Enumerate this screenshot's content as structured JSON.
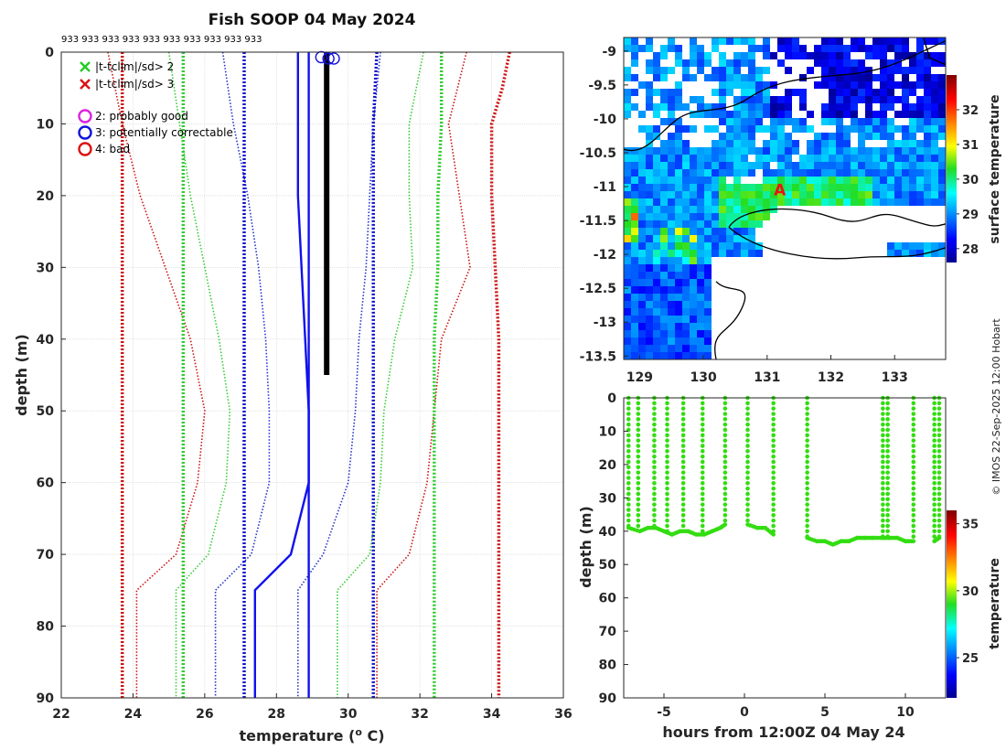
{
  "chart_data": [
    {
      "type": "line",
      "name": "profile",
      "title": "Fish SOOP 04 May 2024",
      "xlabel": "temperature",
      "xlabel_unit": "(",
      "xlabel_sup": "o",
      "xlabel_tail": " C)",
      "ylabel": "depth (m)",
      "xlim": [
        22,
        36
      ],
      "ylim": [
        90,
        0
      ],
      "xticks": [
        "22",
        "24",
        "26",
        "28",
        "30",
        "32",
        "34",
        "36"
      ],
      "yticks": [
        "0",
        "10",
        "20",
        "30",
        "40",
        "50",
        "60",
        "70",
        "80",
        "90"
      ],
      "grid": true,
      "top_annotation": "933 933 933 933 933 933 933 933 933 933",
      "legend": [
        {
          "marker": "x",
          "color": "#22cc22",
          "label": "|t-tclim|/sd> 2"
        },
        {
          "marker": "x",
          "color": "#dd1111",
          "label": "|t-tclim|/sd> 3"
        },
        {
          "marker": "o",
          "color": "#dd22dd",
          "label": "2: probably good"
        },
        {
          "marker": "o",
          "color": "#1111dd",
          "label": "3: potentially correctable"
        },
        {
          "marker": "o",
          "color": "#dd1111",
          "label": "4: bad"
        }
      ],
      "series": [
        {
          "name": "clim_minus3sd",
          "color": "#cc1111",
          "style": "dotted",
          "depth": [
            0,
            10,
            20,
            30,
            40,
            50,
            60,
            70,
            75,
            90
          ],
          "temp": [
            23.3,
            23.7,
            24.2,
            24.9,
            25.6,
            26.0,
            25.8,
            25.2,
            24.1,
            24.1
          ]
        },
        {
          "name": "clim_plus3sd",
          "color": "#cc1111",
          "style": "dotted",
          "depth": [
            0,
            10,
            20,
            30,
            40,
            50,
            60,
            70,
            75,
            90
          ],
          "temp": [
            33.3,
            32.8,
            33.1,
            33.4,
            32.6,
            32.4,
            32.2,
            31.7,
            30.8,
            30.8
          ]
        },
        {
          "name": "clim_minus2sd",
          "color": "#33cc33",
          "style": "dotted",
          "depth": [
            0,
            10,
            20,
            30,
            40,
            50,
            60,
            70,
            75,
            90
          ],
          "temp": [
            25.0,
            25.3,
            25.6,
            26.0,
            26.4,
            26.7,
            26.6,
            26.1,
            25.2,
            25.2
          ]
        },
        {
          "name": "clim_plus2sd",
          "color": "#33cc33",
          "style": "dotted",
          "depth": [
            0,
            10,
            20,
            30,
            40,
            50,
            60,
            70,
            75,
            90
          ],
          "temp": [
            32.1,
            31.7,
            31.7,
            31.8,
            31.3,
            31.0,
            30.9,
            30.6,
            29.7,
            29.7
          ]
        },
        {
          "name": "clim_minus1sd",
          "color": "#2233cc",
          "style": "dotted",
          "depth": [
            0,
            10,
            20,
            30,
            40,
            50,
            60,
            70,
            75,
            90
          ],
          "temp": [
            26.5,
            26.8,
            27.2,
            27.5,
            27.7,
            27.8,
            27.8,
            27.3,
            26.3,
            26.3
          ]
        },
        {
          "name": "clim_plus1sd",
          "color": "#2233cc",
          "style": "dotted",
          "depth": [
            0,
            10,
            20,
            30,
            40,
            50,
            60,
            70,
            75,
            90
          ],
          "temp": [
            30.9,
            30.7,
            30.6,
            30.5,
            30.3,
            30.2,
            30.0,
            29.3,
            28.6,
            28.6
          ]
        },
        {
          "name": "clim_mean",
          "color": "#1111ee",
          "style": "solid",
          "depth": [
            0,
            10,
            20,
            30,
            40,
            50,
            60,
            70,
            75,
            90
          ],
          "temp": [
            28.6,
            28.6,
            28.6,
            28.7,
            28.8,
            28.9,
            28.9,
            28.4,
            27.4,
            27.4
          ]
        },
        {
          "name": "clim_minus3sd_b",
          "color": "#cc1111",
          "style": "dotted_thick",
          "depth": [
            0,
            10,
            20,
            30,
            40,
            50,
            60,
            70,
            80,
            90
          ],
          "temp": [
            23.7,
            23.7,
            23.7,
            23.7,
            23.7,
            23.7,
            23.7,
            23.7,
            23.7,
            23.7
          ]
        },
        {
          "name": "clim_plus3sd_b",
          "color": "#cc1111",
          "style": "dotted_thick",
          "depth": [
            0,
            5,
            10,
            20,
            30,
            40,
            50,
            60,
            70,
            80,
            90
          ],
          "temp": [
            34.5,
            34.3,
            34.0,
            34.0,
            34.1,
            34.2,
            34.2,
            34.2,
            34.2,
            34.2,
            34.2
          ]
        },
        {
          "name": "clim_minus2sd_b",
          "color": "#33cc33",
          "style": "dotted_thick",
          "depth": [
            0,
            10,
            20,
            30,
            40,
            50,
            60,
            70,
            80,
            90
          ],
          "temp": [
            25.4,
            25.4,
            25.4,
            25.4,
            25.4,
            25.4,
            25.4,
            25.4,
            25.4,
            25.4
          ]
        },
        {
          "name": "clim_plus2sd_b",
          "color": "#33cc33",
          "style": "dotted_thick",
          "depth": [
            0,
            10,
            20,
            30,
            40,
            50,
            60,
            70,
            80,
            90
          ],
          "temp": [
            32.6,
            32.6,
            32.5,
            32.5,
            32.4,
            32.4,
            32.4,
            32.4,
            32.4,
            32.4
          ]
        },
        {
          "name": "clim_minus1sd_b",
          "color": "#1111cc",
          "style": "dotted_thick",
          "depth": [
            0,
            10,
            20,
            30,
            40,
            50,
            60,
            70,
            80,
            90
          ],
          "temp": [
            27.1,
            27.1,
            27.1,
            27.1,
            27.1,
            27.1,
            27.1,
            27.1,
            27.1,
            27.1
          ]
        },
        {
          "name": "clim_plus1sd_b",
          "color": "#1111cc",
          "style": "dotted_thick",
          "depth": [
            0,
            10,
            20,
            30,
            40,
            50,
            60,
            70,
            80,
            90
          ],
          "temp": [
            30.8,
            30.7,
            30.7,
            30.7,
            30.7,
            30.7,
            30.7,
            30.7,
            30.7,
            30.7
          ]
        },
        {
          "name": "clim_mean_b",
          "color": "#1111ee",
          "style": "solid",
          "depth": [
            0,
            10,
            20,
            30,
            40,
            50,
            60,
            70,
            80,
            90
          ],
          "temp": [
            28.9,
            28.9,
            28.9,
            28.9,
            28.9,
            28.9,
            28.9,
            28.9,
            28.9,
            28.9
          ]
        },
        {
          "name": "observed",
          "color": "#000000",
          "style": "thick",
          "depth": [
            0,
            5,
            10,
            20,
            30,
            40,
            45
          ],
          "temp": [
            29.4,
            29.4,
            29.4,
            29.4,
            29.4,
            29.4,
            29.4
          ]
        }
      ],
      "flag_points": [
        {
          "temp": 29.25,
          "depth": 0.7,
          "color": "#1111dd"
        },
        {
          "temp": 29.45,
          "depth": 0.9,
          "color": "#1111dd"
        },
        {
          "temp": 29.6,
          "depth": 0.9,
          "color": "#1111dd"
        }
      ]
    },
    {
      "type": "heatmap",
      "name": "map",
      "xlim": [
        128.75,
        133.8
      ],
      "ylim": [
        -13.55,
        -8.8
      ],
      "xticks": [
        "129",
        "130",
        "131",
        "132",
        "133"
      ],
      "yticks": [
        "-9",
        "-9.5",
        "-10",
        "-10.5",
        "-11",
        "-11.5",
        "-12",
        "-12.5",
        "-13",
        "-13.5"
      ],
      "colorbar_label": "surface temperature",
      "colorbar_range": [
        27.6,
        33.0
      ],
      "colorbar_ticks": [
        "28",
        "29",
        "30",
        "31",
        "32"
      ],
      "marker": {
        "label": "A",
        "lon": 131.2,
        "lat": -11.05,
        "color": "#ee1111"
      }
    },
    {
      "type": "scatter",
      "name": "depth_time",
      "xlabel": "hours from 12:00Z 04 May 24",
      "ylabel": "depth (m)",
      "xlim": [
        -7.5,
        12.5
      ],
      "ylim": [
        90,
        0
      ],
      "xticks": [
        "-5",
        "0",
        "5",
        "10"
      ],
      "yticks": [
        "0",
        "10",
        "20",
        "30",
        "40",
        "50",
        "60",
        "70",
        "80",
        "90"
      ],
      "colorbar_label": "temperature",
      "colorbar_range": [
        22,
        36
      ],
      "colorbar_ticks": [
        "25",
        "30",
        "35"
      ],
      "casts": [
        {
          "t": -7.2,
          "bottom": 39
        },
        {
          "t": -6.6,
          "bottom": 40
        },
        {
          "t": -5.6,
          "bottom": 39
        },
        {
          "t": -4.8,
          "bottom": 41
        },
        {
          "t": -3.8,
          "bottom": 40
        },
        {
          "t": -2.6,
          "bottom": 41
        },
        {
          "t": -1.2,
          "bottom": 38
        },
        {
          "t": 0.2,
          "bottom": 38
        },
        {
          "t": 1.8,
          "bottom": 41
        },
        {
          "t": 3.9,
          "bottom": 42
        },
        {
          "t": 8.6,
          "bottom": 42
        },
        {
          "t": 8.9,
          "bottom": 42
        },
        {
          "t": 10.5,
          "bottom": 43
        },
        {
          "t": 11.8,
          "bottom": 43
        },
        {
          "t": 12.1,
          "bottom": 42
        }
      ],
      "bottom_track": [
        {
          "t": -7.2,
          "d": 39
        },
        {
          "t": -6.5,
          "d": 40
        },
        {
          "t": -6.0,
          "d": 39
        },
        {
          "t": -5.5,
          "d": 39
        },
        {
          "t": -5.0,
          "d": 40
        },
        {
          "t": -4.5,
          "d": 41
        },
        {
          "t": -4.0,
          "d": 40
        },
        {
          "t": -3.5,
          "d": 40
        },
        {
          "t": -3.0,
          "d": 41
        },
        {
          "t": -2.5,
          "d": 41
        },
        {
          "t": -2.0,
          "d": 40
        },
        {
          "t": -1.5,
          "d": 39
        },
        {
          "t": -1.2,
          "d": 38
        },
        {
          "t": 0.2,
          "d": 38
        },
        {
          "t": 0.8,
          "d": 39
        },
        {
          "t": 1.3,
          "d": 39
        },
        {
          "t": 1.8,
          "d": 41
        },
        {
          "t": 3.9,
          "d": 42
        },
        {
          "t": 4.5,
          "d": 43
        },
        {
          "t": 5.0,
          "d": 43
        },
        {
          "t": 5.5,
          "d": 44
        },
        {
          "t": 6.0,
          "d": 43
        },
        {
          "t": 6.5,
          "d": 43
        },
        {
          "t": 7.0,
          "d": 42
        },
        {
          "t": 7.5,
          "d": 42
        },
        {
          "t": 8.0,
          "d": 42
        },
        {
          "t": 8.6,
          "d": 42
        },
        {
          "t": 9.0,
          "d": 42
        },
        {
          "t": 9.5,
          "d": 42
        },
        {
          "t": 10.0,
          "d": 43
        },
        {
          "t": 10.5,
          "d": 43
        },
        {
          "t": 11.8,
          "d": 43
        },
        {
          "t": 12.1,
          "d": 42
        }
      ]
    }
  ],
  "credit": "© IMOS 22-Sep-2025 12:00 Hobart"
}
